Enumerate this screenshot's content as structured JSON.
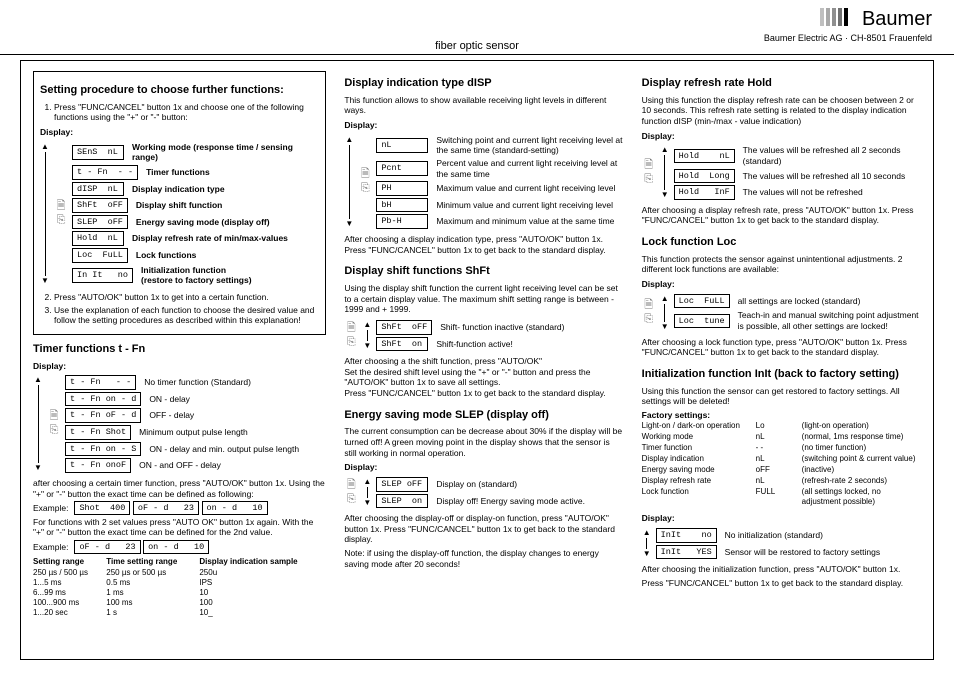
{
  "brand": {
    "bar_colors": [
      "#bfbfbf",
      "#a8a8a8",
      "#8f8f8f",
      "#707070",
      "#000000"
    ],
    "name": "Baumer",
    "sub": "Baumer Electric AG · CH-8501 Frauenfeld"
  },
  "doc_title": "fiber optic sensor",
  "col1": {
    "setting_proc": {
      "title": "Setting procedure to choose further functions:",
      "step1": "Press \"FUNC/CANCEL\" button 1x and choose one of the following functions using the \"+\" or \"-\" button:",
      "display_label": "Display:",
      "rows": [
        {
          "box": "SEnS  nL",
          "desc": "Working mode (response time / sensing range)",
          "bold": true
        },
        {
          "box": "t - Fn  - -",
          "desc": "Timer functions",
          "bold": true
        },
        {
          "box": "dISP  nL",
          "desc": "Display indication type",
          "bold": true
        },
        {
          "box": "ShFt  oFF",
          "desc": "Display shift function",
          "bold": true
        },
        {
          "box": "SLEP  oFF",
          "desc": "Energy saving mode (display off)",
          "bold": true
        },
        {
          "box": "Hold  nL",
          "desc": "Display refresh rate of min/max-values",
          "bold": true
        },
        {
          "box": "Loc  FuLL",
          "desc": "Lock functions",
          "bold": true
        },
        {
          "box": "In It   no",
          "desc": "Initialization function\n(restore to factory settings)",
          "bold": true
        }
      ],
      "step2": "Press \"AUTO/OK\" button 1x to get into a certain function.",
      "step3": "Use the explanation of each function to choose the desired value and follow the setting procedures as described within this explanation!"
    },
    "timer": {
      "title": "Timer functions t - Fn",
      "display_label": "Display:",
      "rows": [
        {
          "box": "t - Fn   - -",
          "desc": "No timer function (Standard)"
        },
        {
          "box": "t - Fn on - d",
          "desc": "ON - delay"
        },
        {
          "box": "t - Fn oF - d",
          "desc": "OFF - delay"
        },
        {
          "box": "t - Fn Shot",
          "desc": "Minimum output pulse length"
        },
        {
          "box": "t - Fn on - S",
          "desc": "ON - delay and min. output pulse length"
        },
        {
          "box": "t - Fn onoF",
          "desc": "ON - and OFF - delay"
        }
      ],
      "after1": "after choosing a certain timer function, press \"AUTO/OK\" button 1x. Using the \"+\" or \"-\" button the exact time can be defined as following:",
      "ex1_label": "Example:",
      "ex1_boxes": [
        "Shot  400",
        "oF - d   23",
        "on - d   10"
      ],
      "after2": "For functions with 2 set values press \"AUTO OK\" button 1x again. With the \"+\" or \"-\" button the exact time can be defined for the 2nd value.",
      "ex2_label": "Example:",
      "ex2_boxes": [
        "oF - d   23",
        "on - d   10"
      ],
      "table": {
        "headers": [
          "Setting range",
          "Time setting range",
          "Display indication sample"
        ],
        "rows": [
          [
            "250 µs / 500 µs",
            "250 µs or 500 µs",
            "250u"
          ],
          [
            "1...5 ms",
            "0.5 ms",
            "IPS"
          ],
          [
            "6...99 ms",
            "1 ms",
            "10"
          ],
          [
            "100...900 ms",
            "100 ms",
            "100"
          ],
          [
            "1...20 sec",
            "1 s",
            "10_"
          ]
        ]
      }
    }
  },
  "col2": {
    "disp": {
      "title": "Display indication type dISP",
      "intro": "This function allows to show available receiving light levels in different ways.",
      "display_label": "Display:",
      "rows": [
        {
          "box": "nL",
          "desc": "Switching point and current light receiving level at the same time (standard-setting)"
        },
        {
          "box": "Pcnt",
          "desc": "Percent value and current light receiving level at the same time"
        },
        {
          "box": "PH",
          "desc": "Maximum value and current light receiving level"
        },
        {
          "box": "bH",
          "desc": "Minimum value and current light receiving level"
        },
        {
          "box": "Pb-H",
          "desc": "Maximum and minimum value at the same time"
        }
      ],
      "after": "After choosing a display indication type, press \"AUTO/OK\" button 1x. Press \"FUNC/CANCEL\" button 1x to get back to the standard display."
    },
    "shift": {
      "title": "Display shift functions ShFt",
      "intro": "Using the display shift function the current light receiving level can be set to a certain display value. The maximum shift setting range is between  - 1999 and + 1999.",
      "rows": [
        {
          "box": "ShFt  oFF",
          "desc": "Shift- function inactive (standard)"
        },
        {
          "box": "ShFt  on",
          "desc": "Shift-function active!"
        }
      ],
      "after": "After choosing a the shift function, press \"AUTO/OK\"\nSet the desired shift level using the \"+\" or \"-\" button and press the \"AUTO/OK\" button 1x to save all settings.\nPress \"FUNC/CANCEL\" button 1x to get back to the standard display."
    },
    "slep": {
      "title": "Energy saving mode SLEP (display off)",
      "intro": "The current consumption can be decrease about 30% if the display will be turned off! A green moving point in the display shows that the sensor is still working in normal operation.",
      "display_label": "Display:",
      "rows": [
        {
          "box": "SLEP oFF",
          "desc": "Display on (standard)"
        },
        {
          "box": "SLEP  on",
          "desc": "Display off! Energy saving mode active."
        }
      ],
      "after": "After choosing the display-off or display-on function, press \"AUTO/OK\" button 1x. Press \"FUNC/CANCEL\" button 1x to get back to the standard display.",
      "note": "Note: if using the display-off function, the display changes to energy saving mode after 20 seconds!"
    }
  },
  "col3": {
    "hold": {
      "title": "Display refresh rate Hold",
      "intro": "Using this function the display refresh rate can be choosen between 2 or 10 seconds. This refresh rate setting is related to the display indication function dISP (min-/max - value indication)",
      "display_label": "Display:",
      "rows": [
        {
          "box": "Hold    nL",
          "desc": "The values will be refreshed all 2 seconds (standard)"
        },
        {
          "box": "Hold  Long",
          "desc": "The values will be refreshed all 10 seconds"
        },
        {
          "box": "Hold   InF",
          "desc": "The values will not be refreshed"
        }
      ],
      "after": "After choosing a display refresh rate, press \"AUTO/OK\" button 1x. Press \"FUNC/CANCEL\" button 1x to get back to the standard display."
    },
    "lock": {
      "title": "Lock function Loc",
      "intro": "This function protects the sensor against unintentional adjustments. 2 different lock functions are available:",
      "display_label": "Display:",
      "rows": [
        {
          "box": "Loc  FuLL",
          "desc": "all settings are locked (standard)"
        },
        {
          "box": "Loc  tune",
          "desc": "Teach-in and manual switching point adjustment is possible, all other settings are locked!"
        }
      ],
      "after": "After choosing a lock function type, press \"AUTO/OK\" button 1x. Press \"FUNC/CANCEL\" button 1x to get back to the standard display."
    },
    "init": {
      "title": "Initialization function InIt (back to factory setting)",
      "intro": "Using this function the sensor can get restored to factory settings. All settings will be deleted!",
      "fs_title": "Factory settings:",
      "fs": [
        {
          "c1": "Light-on / dark-on operation",
          "c2": "Lo",
          "c3": "(light-on operation)"
        },
        {
          "c1": "Working mode",
          "c2": "nL",
          "c3": "(normal, 1ms response time)"
        },
        {
          "c1": "Timer function",
          "c2": "- -",
          "c3": "(no timer function)"
        },
        {
          "c1": "Display indication",
          "c2": "nL",
          "c3": "(switching point & current value)"
        },
        {
          "c1": "Energy saving mode",
          "c2": "oFF",
          "c3": "(inactive)"
        },
        {
          "c1": "Display refresh rate",
          "c2": "nL",
          "c3": "(refresh-rate 2 seconds)"
        },
        {
          "c1": "Lock function",
          "c2": "FULL",
          "c3": "(all settings locked, no adjustment possible)"
        }
      ],
      "display_label": "Display:",
      "rows": [
        {
          "box": "InIt    no",
          "desc": "No initialization (standard)"
        },
        {
          "box": "InIt   YES",
          "desc": "Sensor will be restored to factory settings"
        }
      ],
      "after1": "After choosing the initialization function, press \"AUTO/OK\" button 1x.",
      "after2": "Press \"FUNC/CANCEL\" button 1x to get back to the standard display."
    }
  }
}
